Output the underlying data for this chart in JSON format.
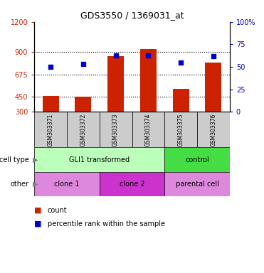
{
  "title": "GDS3550 / 1369031_at",
  "samples": [
    "GSM303371",
    "GSM303372",
    "GSM303373",
    "GSM303374",
    "GSM303375",
    "GSM303376"
  ],
  "counts": [
    460,
    450,
    860,
    930,
    530,
    790
  ],
  "percentile_ranks": [
    50,
    53,
    63,
    63,
    55,
    62
  ],
  "y_min": 300,
  "y_max": 1200,
  "y_ticks": [
    300,
    450,
    675,
    900,
    1200
  ],
  "y_tick_labels": [
    "300",
    "450",
    "675",
    "900",
    "1200"
  ],
  "y2_ticks": [
    0,
    25,
    50,
    75,
    100
  ],
  "y2_tick_labels": [
    "0",
    "25",
    "50",
    "75",
    "100%"
  ],
  "bar_color": "#cc2200",
  "dot_color": "#0000cc",
  "bar_bottom": 300,
  "cell_type_groups": [
    {
      "label": "GLI1 transformed",
      "start": 0,
      "end": 3,
      "color": "#bbffbb"
    },
    {
      "label": "control",
      "start": 4,
      "end": 5,
      "color": "#44dd44"
    }
  ],
  "other_groups": [
    {
      "label": "clone 1",
      "start": 0,
      "end": 1,
      "color": "#dd88dd"
    },
    {
      "label": "clone 2",
      "start": 2,
      "end": 3,
      "color": "#cc33cc"
    },
    {
      "label": "parental cell",
      "start": 4,
      "end": 5,
      "color": "#dd88dd"
    }
  ],
  "sample_box_color": "#cccccc",
  "legend_count_label": "count",
  "legend_percentile_label": "percentile rank within the sample"
}
